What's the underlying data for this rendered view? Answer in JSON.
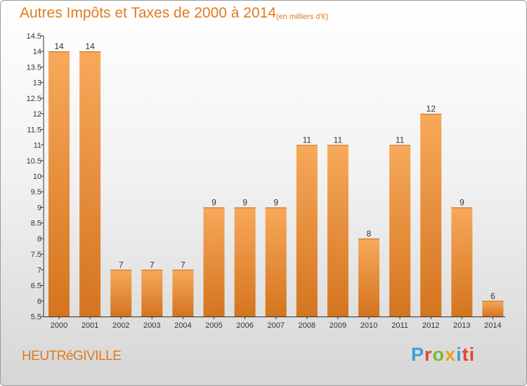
{
  "header": {
    "title": "Autres Impôts et Taxes de 2000 à 2014",
    "subtitle": "(en milliers d'€)"
  },
  "footer": {
    "town": "HEUTRéGIVILLE",
    "logo_letters": [
      "P",
      "r",
      "o",
      "x",
      "i",
      "ti"
    ]
  },
  "colors": {
    "accent": "#e07a1e",
    "bar_top": "#f7a95a",
    "bar_bottom": "#d4741f"
  },
  "chart_data": {
    "type": "bar",
    "title": "Autres Impôts et Taxes de 2000 à 2014",
    "categories": [
      "2000",
      "2001",
      "2002",
      "2003",
      "2004",
      "2005",
      "2006",
      "2007",
      "2008",
      "2009",
      "2010",
      "2011",
      "2012",
      "2013",
      "2014"
    ],
    "values": [
      14,
      14,
      7,
      7,
      7,
      9,
      9,
      9,
      11,
      11,
      8,
      11,
      12,
      9,
      6
    ],
    "data_labels": [
      "14",
      "14",
      "7",
      "7",
      "7",
      "9",
      "9",
      "9",
      "11",
      "11",
      "8",
      "11",
      "12",
      "9",
      "6"
    ],
    "yticks": [
      "5.5",
      "6",
      "6.5",
      "7",
      "7.5",
      "8",
      "8.5",
      "9",
      "9.5",
      "10",
      "10.5",
      "11",
      "11.5",
      "12",
      "12.5",
      "13",
      "13.5",
      "14",
      "14.5"
    ],
    "ylim": [
      5.5,
      14.5
    ],
    "grid": false,
    "legend": "none"
  }
}
